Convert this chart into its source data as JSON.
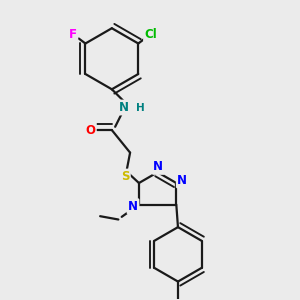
{
  "bg_color": "#ebebeb",
  "bond_color": "#1a1a1a",
  "bond_width": 1.6,
  "atom_colors": {
    "F": "#ff00ff",
    "Cl": "#00bb00",
    "N": "#0000ff",
    "NH": "#008080",
    "H": "#008080",
    "O": "#ff0000",
    "S": "#ccbb00",
    "C": "#1a1a1a"
  },
  "fs": 8.5
}
